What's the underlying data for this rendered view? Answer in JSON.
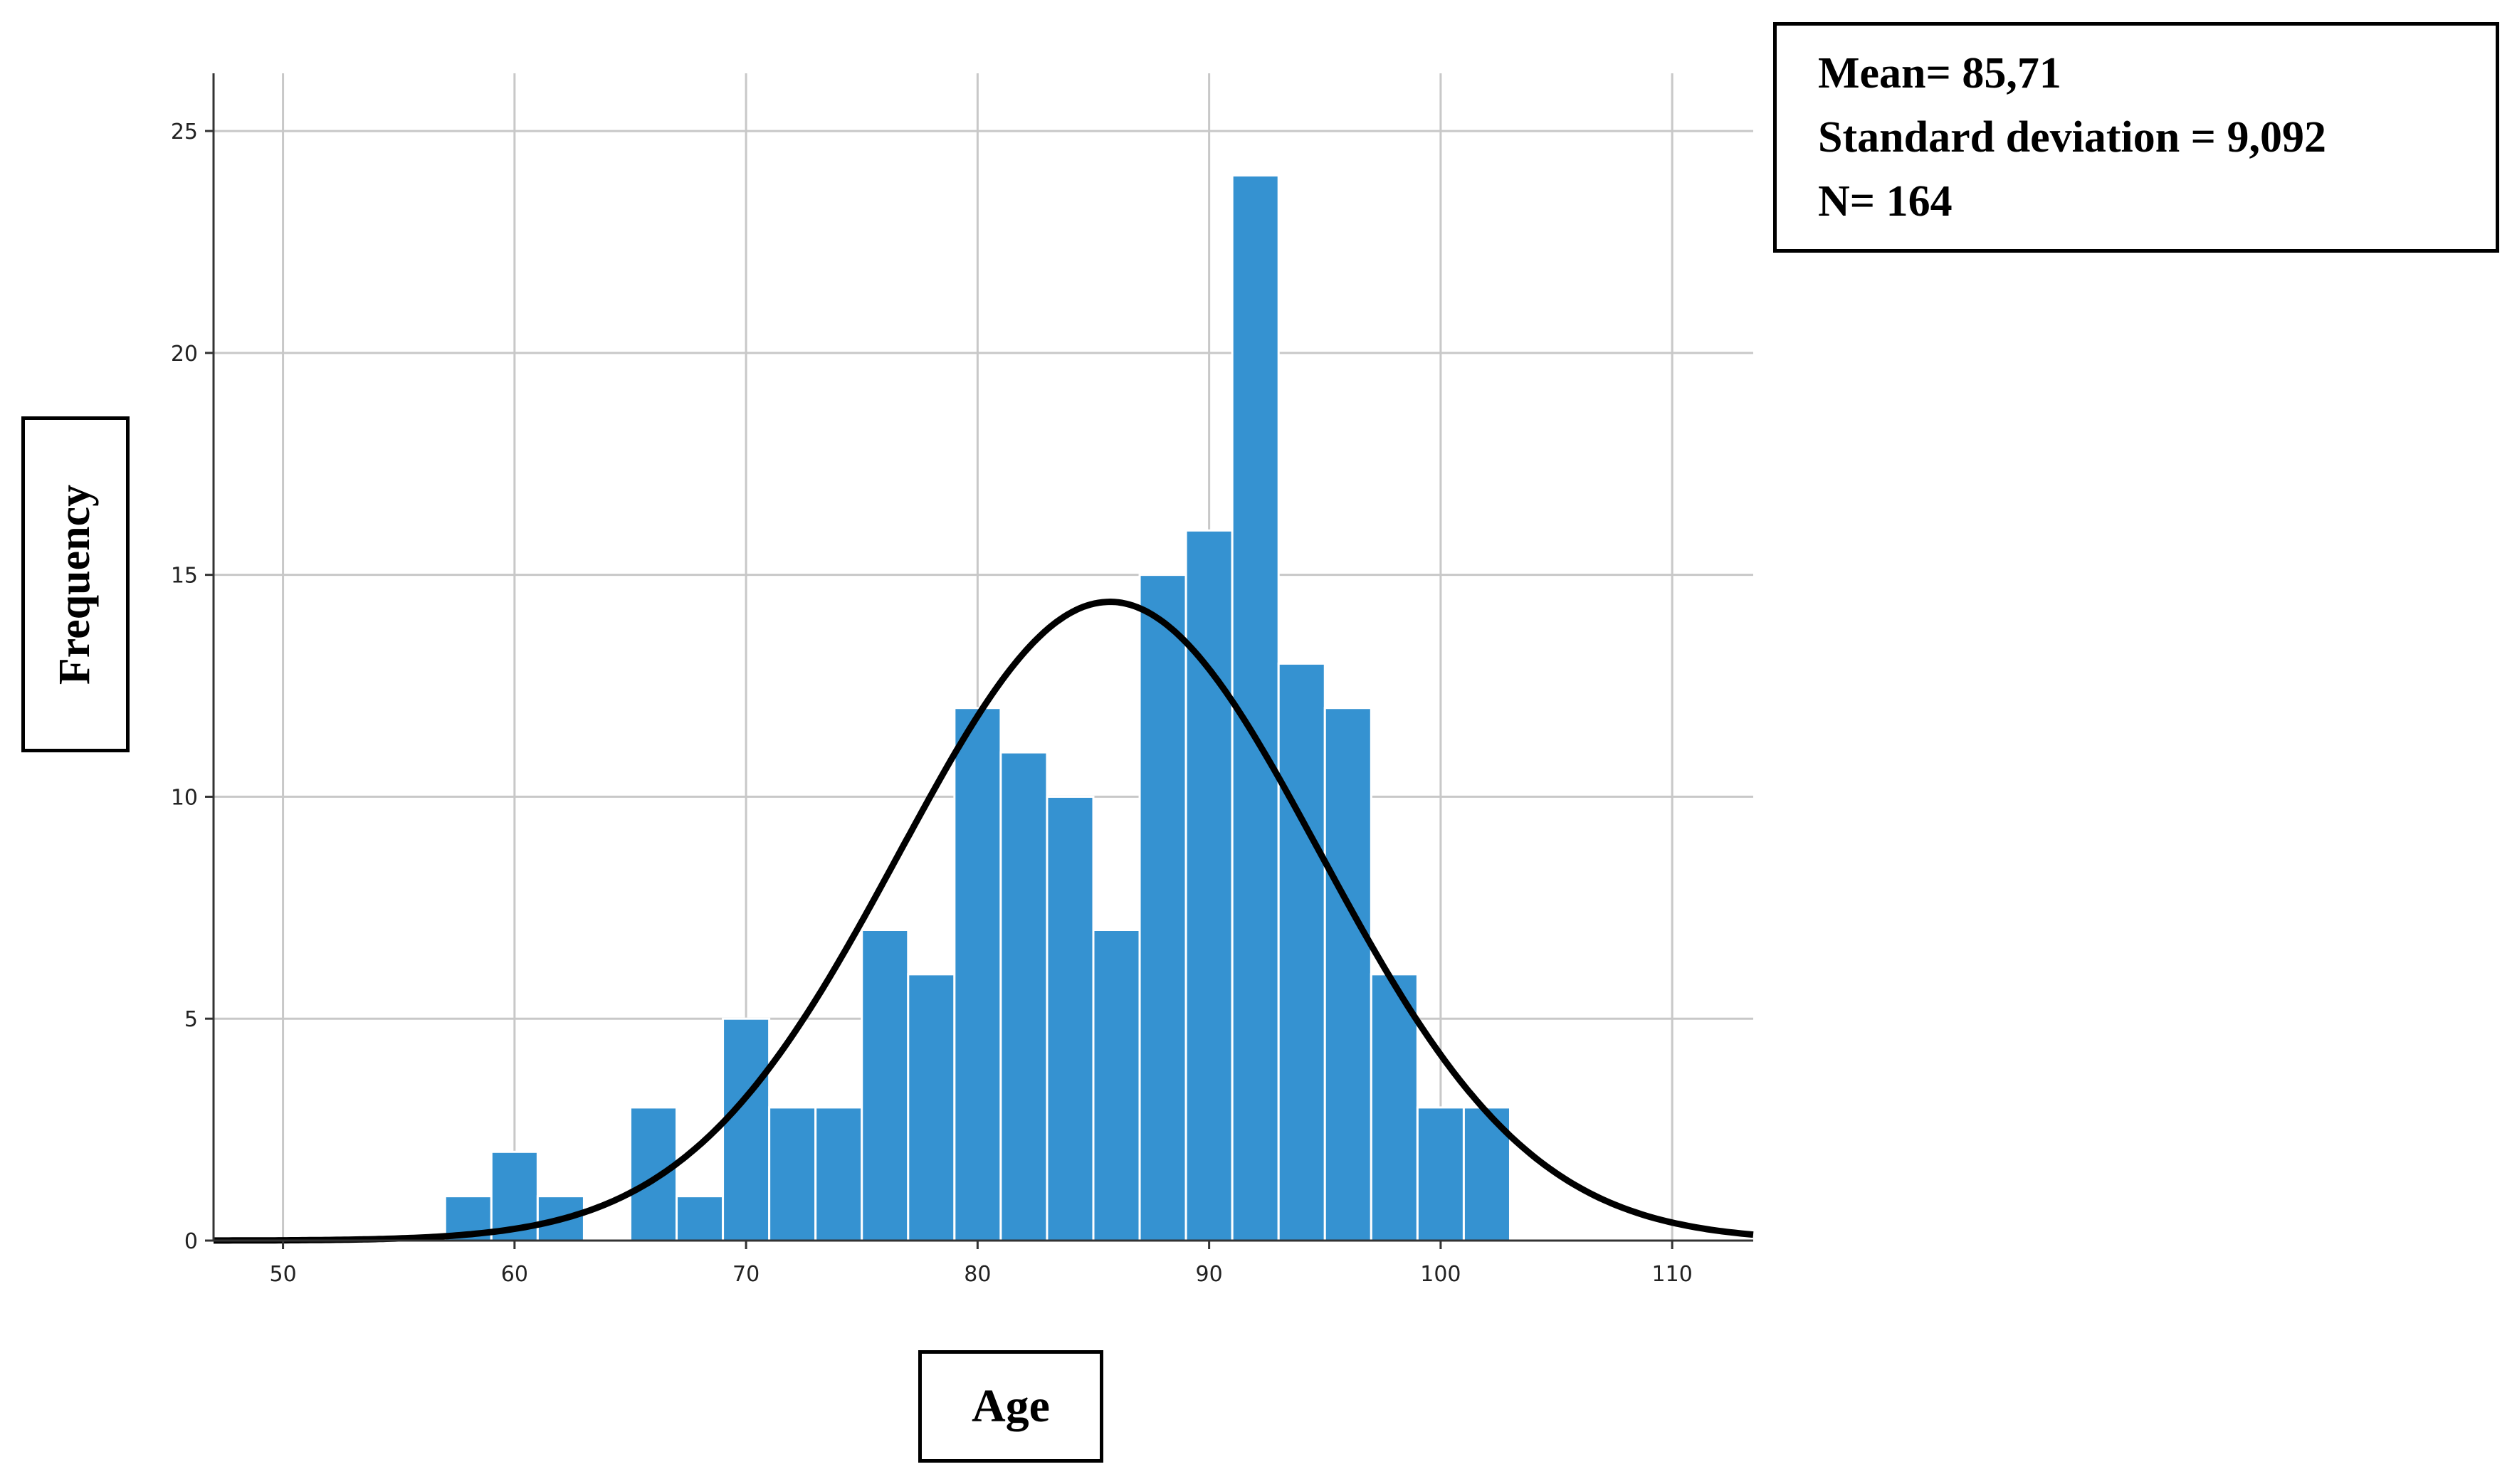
{
  "chart_data": {
    "type": "bar",
    "xlabel": "Age",
    "ylabel": "Frequency",
    "xlim": [
      47,
      113.5
    ],
    "ylim": [
      0,
      25
    ],
    "x_ticks": [
      50,
      60,
      70,
      80,
      90,
      100,
      110
    ],
    "y_ticks": [
      0,
      5,
      10,
      15,
      20,
      25
    ],
    "grid": true,
    "bin_width": 2,
    "bins": [
      {
        "start": 57,
        "end": 59,
        "count": 1
      },
      {
        "start": 59,
        "end": 61,
        "count": 2
      },
      {
        "start": 61,
        "end": 63,
        "count": 1
      },
      {
        "start": 63,
        "end": 65,
        "count": 0
      },
      {
        "start": 65,
        "end": 67,
        "count": 3
      },
      {
        "start": 67,
        "end": 69,
        "count": 1
      },
      {
        "start": 69,
        "end": 71,
        "count": 5
      },
      {
        "start": 71,
        "end": 73,
        "count": 3
      },
      {
        "start": 73,
        "end": 75,
        "count": 3
      },
      {
        "start": 75,
        "end": 77,
        "count": 7
      },
      {
        "start": 77,
        "end": 79,
        "count": 6
      },
      {
        "start": 79,
        "end": 81,
        "count": 12
      },
      {
        "start": 81,
        "end": 83,
        "count": 11
      },
      {
        "start": 83,
        "end": 85,
        "count": 10
      },
      {
        "start": 85,
        "end": 87,
        "count": 7
      },
      {
        "start": 87,
        "end": 89,
        "count": 15
      },
      {
        "start": 89,
        "end": 91,
        "count": 16
      },
      {
        "start": 91,
        "end": 93,
        "count": 24
      },
      {
        "start": 93,
        "end": 95,
        "count": 13
      },
      {
        "start": 95,
        "end": 97,
        "count": 12
      },
      {
        "start": 97,
        "end": 99,
        "count": 6
      },
      {
        "start": 99,
        "end": 101,
        "count": 3
      },
      {
        "start": 101,
        "end": 103,
        "count": 3
      }
    ],
    "normal_curve": {
      "mean": 85.71,
      "sd": 9.092,
      "n": 164
    }
  },
  "stats": {
    "mean_text": "Mean= 85,71",
    "sd_text": "Standard deviation = 9,092",
    "n_text": "N= 164"
  },
  "colors": {
    "bar": "#3592d1",
    "bar_edge": "#ffffff",
    "curve": "#000000",
    "grid": "#c8c8c8",
    "axis": "#333333"
  }
}
